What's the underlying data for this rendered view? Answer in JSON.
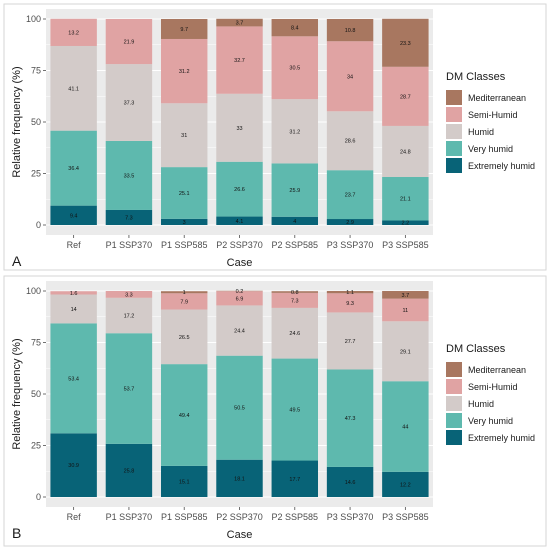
{
  "colors": {
    "Mediterranean": "#a87760",
    "Semi-Humid": "#e0a3a3",
    "Humid": "#d3cbc9",
    "Very humid": "#5eb9ae",
    "Extremely humid": "#086377",
    "panel_bg": "#ebebeb",
    "grid": "#ffffff",
    "label": "#1a1a1a"
  },
  "chart_data": [
    {
      "type": "bar",
      "stacked": true,
      "panel_label": "A",
      "xlabel": "Case",
      "ylabel": "Relative frequency (%)",
      "ylim": [
        0,
        100
      ],
      "yticks": [
        0,
        25,
        50,
        75,
        100
      ],
      "grid": true,
      "categories": [
        "Ref",
        "P1 SSP370",
        "P1 SSP585",
        "P2 SSP370",
        "P2 SSP585",
        "P3 SSP370",
        "P3 SSP585"
      ],
      "legend": {
        "title": "DM Classes",
        "placement": "right",
        "entries": [
          "Mediterranean",
          "Semi-Humid",
          "Humid",
          "Very humid",
          "Extremely humid"
        ]
      },
      "series": [
        {
          "name": "Extremely humid",
          "values": [
            9.4,
            7.3,
            3,
            4.1,
            4,
            2.9,
            2.2
          ],
          "labels": [
            "9.4",
            "7.3",
            "3",
            "4.1",
            "4",
            "2.9",
            "2.2"
          ]
        },
        {
          "name": "Very humid",
          "values": [
            36.4,
            33.5,
            25.1,
            26.6,
            25.9,
            23.7,
            21.1
          ],
          "labels": [
            "36.4",
            "33.5",
            "25.1",
            "26.6",
            "25.9",
            "23.7",
            "21.1"
          ]
        },
        {
          "name": "Humid",
          "values": [
            41.1,
            37.3,
            31,
            33,
            31.2,
            28.6,
            24.8
          ],
          "labels": [
            "41.1",
            "37.3",
            "31",
            "33",
            "31.2",
            "28.6",
            "24.8"
          ]
        },
        {
          "name": "Semi-Humid",
          "values": [
            13.2,
            21.9,
            31.2,
            32.7,
            30.5,
            34,
            28.7
          ],
          "labels": [
            "13.2",
            "21.9",
            "31.2",
            "32.7",
            "30.5",
            "34",
            "28.7"
          ]
        },
        {
          "name": "Mediterranean",
          "values": [
            0,
            0,
            9.7,
            3.7,
            8.4,
            10.8,
            23.3
          ],
          "labels": [
            "",
            "",
            "9.7",
            "3.7",
            "8.4",
            "10.8",
            "23.3"
          ]
        }
      ]
    },
    {
      "type": "bar",
      "stacked": true,
      "panel_label": "B",
      "xlabel": "Case",
      "ylabel": "Relative frequency (%)",
      "ylim": [
        0,
        100
      ],
      "yticks": [
        0,
        25,
        50,
        75,
        100
      ],
      "grid": true,
      "categories": [
        "Ref",
        "P1 SSP370",
        "P1 SSP585",
        "P2 SSP370",
        "P2 SSP585",
        "P3 SSP370",
        "P3 SSP585"
      ],
      "legend": {
        "title": "DM Classes",
        "placement": "right",
        "entries": [
          "Mediterranean",
          "Semi-Humid",
          "Humid",
          "Very humid",
          "Extremely humid"
        ]
      },
      "series": [
        {
          "name": "Extremely humid",
          "values": [
            30.9,
            25.8,
            15.1,
            18.1,
            17.7,
            14.6,
            12.2
          ],
          "labels": [
            "30.9",
            "25.8",
            "15.1",
            "18.1",
            "17.7",
            "14.6",
            "12.2"
          ]
        },
        {
          "name": "Very humid",
          "values": [
            53.4,
            53.7,
            49.4,
            50.5,
            49.5,
            47.3,
            44
          ],
          "labels": [
            "53.4",
            "53.7",
            "49.4",
            "50.5",
            "49.5",
            "47.3",
            "44"
          ]
        },
        {
          "name": "Humid",
          "values": [
            14,
            17.2,
            26.5,
            24.4,
            24.6,
            27.7,
            29.1
          ],
          "labels": [
            "14",
            "17.2",
            "26.5",
            "24.4",
            "24.6",
            "27.7",
            "29.1"
          ]
        },
        {
          "name": "Semi-Humid",
          "values": [
            1.6,
            3.3,
            7.9,
            6.9,
            7.3,
            9.3,
            11
          ],
          "labels": [
            "1.6",
            "3.3",
            "7.9",
            "6.9",
            "7.3",
            "9.3",
            "11"
          ]
        },
        {
          "name": "Mediterranean",
          "values": [
            0,
            0,
            1,
            0.2,
            0.8,
            1.1,
            3.7
          ],
          "labels": [
            "",
            "",
            "1",
            "0.2",
            "0.8",
            "1.1",
            "3.7"
          ]
        }
      ]
    }
  ]
}
